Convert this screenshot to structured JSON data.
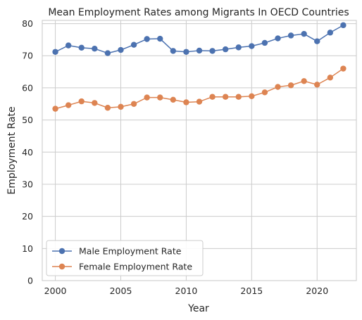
{
  "chart_data": {
    "type": "line",
    "title": "Mean Employment Rates among Migrants In OECD Countries",
    "xlabel": "Year",
    "ylabel": "Employment Rate",
    "x": [
      2000,
      2001,
      2002,
      2003,
      2004,
      2005,
      2006,
      2007,
      2008,
      2009,
      2010,
      2011,
      2012,
      2013,
      2014,
      2015,
      2016,
      2017,
      2018,
      2019,
      2020,
      2021,
      2022
    ],
    "xlim": [
      1999,
      2023
    ],
    "ylim": [
      0,
      81
    ],
    "xticks": [
      2000,
      2005,
      2010,
      2015,
      2020
    ],
    "yticks": [
      0,
      10,
      20,
      30,
      40,
      50,
      60,
      70,
      80
    ],
    "grid": true,
    "legend_position": "lower-left",
    "series": [
      {
        "name": "Male Employment Rate",
        "color": "#4c72b0",
        "marker": "circle",
        "values": [
          71.2,
          73.2,
          72.5,
          72.2,
          70.8,
          71.8,
          73.4,
          75.2,
          75.3,
          71.5,
          71.2,
          71.6,
          71.5,
          72.0,
          72.6,
          73.0,
          74.0,
          75.4,
          76.3,
          76.8,
          74.5,
          77.2,
          79.5
        ]
      },
      {
        "name": "Female Employment Rate",
        "color": "#dd8452",
        "marker": "circle",
        "values": [
          53.5,
          54.6,
          55.8,
          55.3,
          53.8,
          54.1,
          55.0,
          57.0,
          57.0,
          56.3,
          55.5,
          55.7,
          57.2,
          57.2,
          57.2,
          57.4,
          58.6,
          60.3,
          60.8,
          62.1,
          61.0,
          63.2,
          66.0
        ]
      }
    ]
  }
}
